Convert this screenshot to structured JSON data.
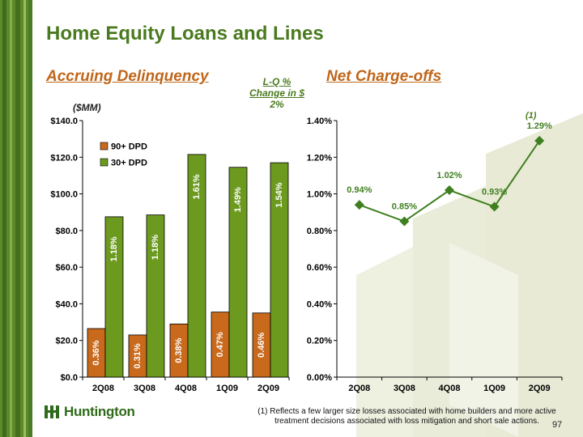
{
  "title": "Home Equity Loans and Lines",
  "left_heading": "Accruing Delinquency",
  "right_heading": "Net Charge-offs",
  "lq_note": {
    "line1": "L-Q %",
    "line2": "Change in $",
    "value": "2%"
  },
  "unit_label": "($MM)",
  "footnote_marker": "(1)",
  "footnote": "(1) Reflects a few larger size losses associated with home builders and more active treatment decisions associated with loss mitigation and short sale actions.",
  "page_number": "97",
  "logo_text": "Huntington",
  "colors": {
    "title_green": "#4a7a1f",
    "heading_orange": "#c0661a",
    "dpd90": "#c8691c",
    "dpd30": "#6b9a1f",
    "line_green": "#3f7f1f",
    "watermark": "#e8ead6",
    "sidebar_green": "#5b8a2a"
  },
  "chart_data": [
    {
      "type": "bar",
      "stacked": false,
      "categories": [
        "2Q08",
        "3Q08",
        "4Q08",
        "1Q09",
        "2Q09"
      ],
      "series": [
        {
          "name": "90+ DPD",
          "values": [
            26.5,
            23.0,
            29.0,
            35.5,
            35.0
          ],
          "labels": [
            "0.36%",
            "0.31%",
            "0.38%",
            "0.47%",
            "0.46%"
          ]
        },
        {
          "name": "30+ DPD",
          "values": [
            87.5,
            88.5,
            121.5,
            114.5,
            117.0
          ],
          "labels": [
            "1.18%",
            "1.18%",
            "1.61%",
            "1.49%",
            "1.54%"
          ]
        }
      ],
      "ylim": [
        0,
        140
      ],
      "yticks": [
        0,
        20,
        40,
        60,
        80,
        100,
        120,
        140
      ],
      "ytick_labels": [
        "$0.0",
        "$20.0",
        "$40.0",
        "$60.0",
        "$80.0",
        "$100.0",
        "$120.0",
        "$140.0"
      ],
      "legend": "top-left",
      "grid": false
    },
    {
      "type": "line",
      "categories": [
        "2Q08",
        "3Q08",
        "4Q08",
        "1Q09",
        "2Q09"
      ],
      "series": [
        {
          "values": [
            0.94,
            0.85,
            1.02,
            0.93,
            1.29
          ],
          "labels": [
            "0.94%",
            "0.85%",
            "1.02%",
            "0.93%",
            "1.29%"
          ]
        }
      ],
      "ylim": [
        0,
        1.4
      ],
      "yticks": [
        0,
        0.2,
        0.4,
        0.6,
        0.8,
        1.0,
        1.2,
        1.4
      ],
      "ytick_labels": [
        "0.00%",
        "0.20%",
        "0.40%",
        "0.60%",
        "0.80%",
        "1.00%",
        "1.20%",
        "1.40%"
      ],
      "grid": false
    }
  ]
}
